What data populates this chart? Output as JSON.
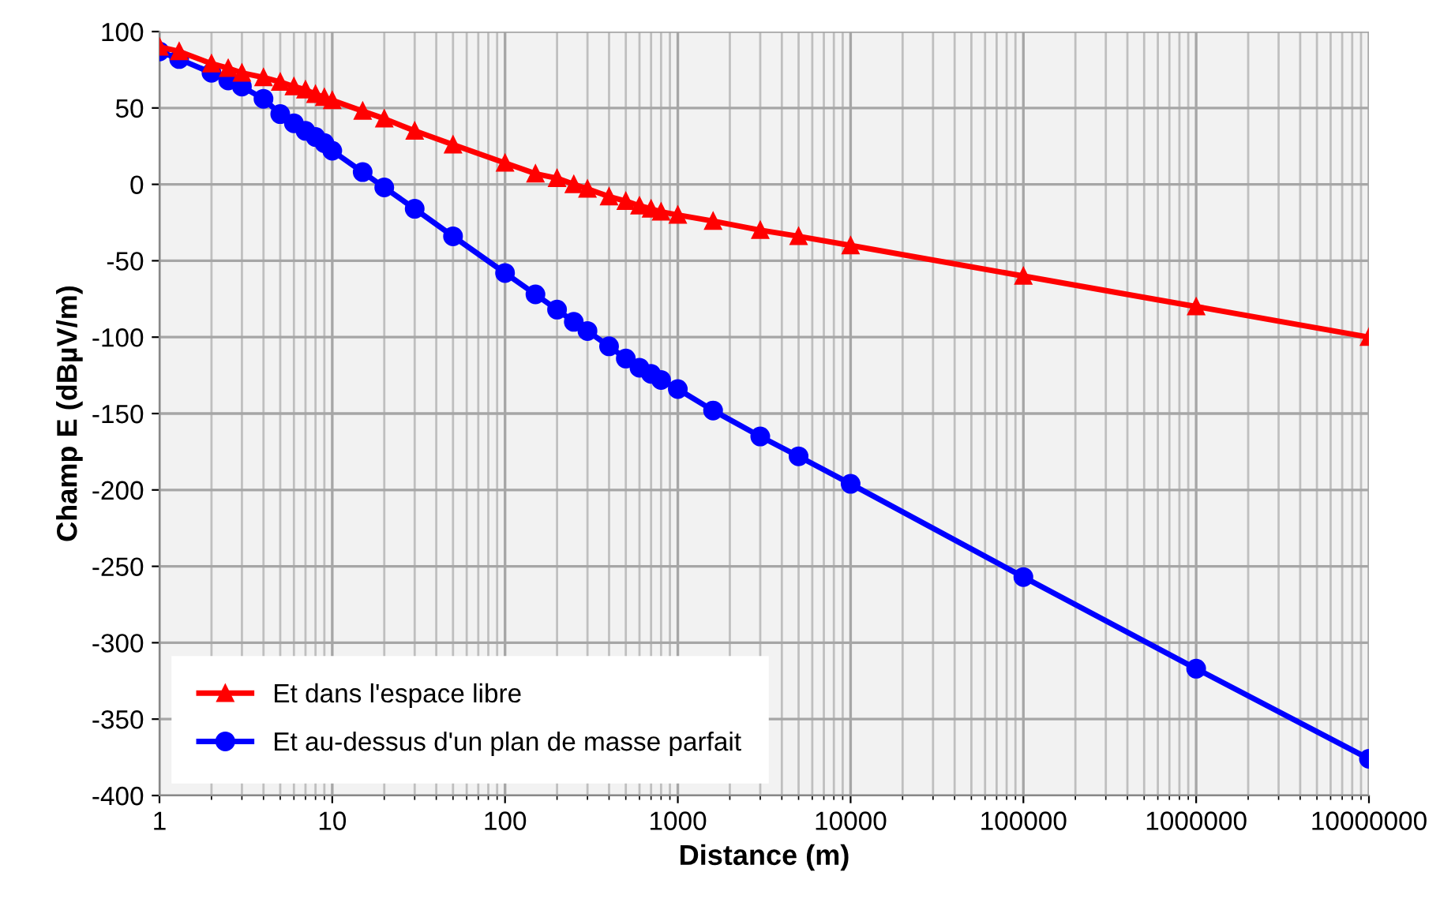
{
  "chart_data": {
    "type": "line",
    "xlabel": "Distance (m)",
    "ylabel": "Champ E (dBµV/m)",
    "log": "x",
    "grid": true,
    "legend": "bottom left",
    "xlim": [
      1,
      10000000
    ],
    "xticks": [
      {
        "value": 1,
        "label": "1"
      },
      {
        "value": 10,
        "label": "10"
      },
      {
        "value": 100,
        "label": "100"
      },
      {
        "value": 1000,
        "label": "1000"
      },
      {
        "value": 10000,
        "label": "10000"
      },
      {
        "value": 100000,
        "label": "100000"
      },
      {
        "value": 1000000,
        "label": "1000000"
      },
      {
        "value": 10000000,
        "label": "10000000"
      }
    ],
    "ylim": [
      -400,
      100
    ],
    "yticks": [
      -400,
      -350,
      -300,
      -250,
      -200,
      -150,
      -100,
      -50,
      0,
      50,
      100
    ],
    "x": [
      1,
      1.3,
      2,
      2.5,
      3,
      4,
      5,
      6,
      7,
      8,
      9,
      10,
      15,
      20,
      30,
      50,
      100,
      150,
      200,
      250,
      300,
      400,
      500,
      600,
      700,
      800,
      1000,
      1600,
      3000,
      5000,
      10000,
      100000,
      1000000,
      10000000
    ],
    "series": [
      {
        "name": "Et dans l'espace libre",
        "color": "#ff0000",
        "marker": "triangle",
        "values": [
          90,
          87,
          79,
          76,
          73,
          70,
          67,
          64,
          62,
          59,
          57,
          55,
          48,
          43,
          35,
          26,
          14,
          7,
          4,
          0,
          -3,
          -8,
          -11,
          -14,
          -16,
          -18,
          -20,
          -24,
          -30,
          -34,
          -40,
          -60,
          -80,
          -100
        ]
      },
      {
        "name": "Et au-dessus d'un plan de masse parfait",
        "color": "#0000ff",
        "marker": "circle",
        "values": [
          87,
          82,
          73,
          68,
          64,
          56,
          46,
          40,
          35,
          31,
          27,
          22,
          8,
          -2,
          -16,
          -34,
          -58,
          -72,
          -82,
          -90,
          -96,
          -106,
          -114,
          -120,
          -124,
          -128,
          -134,
          -148,
          -165,
          -178,
          -196,
          -257,
          -317,
          -376
        ]
      }
    ]
  }
}
